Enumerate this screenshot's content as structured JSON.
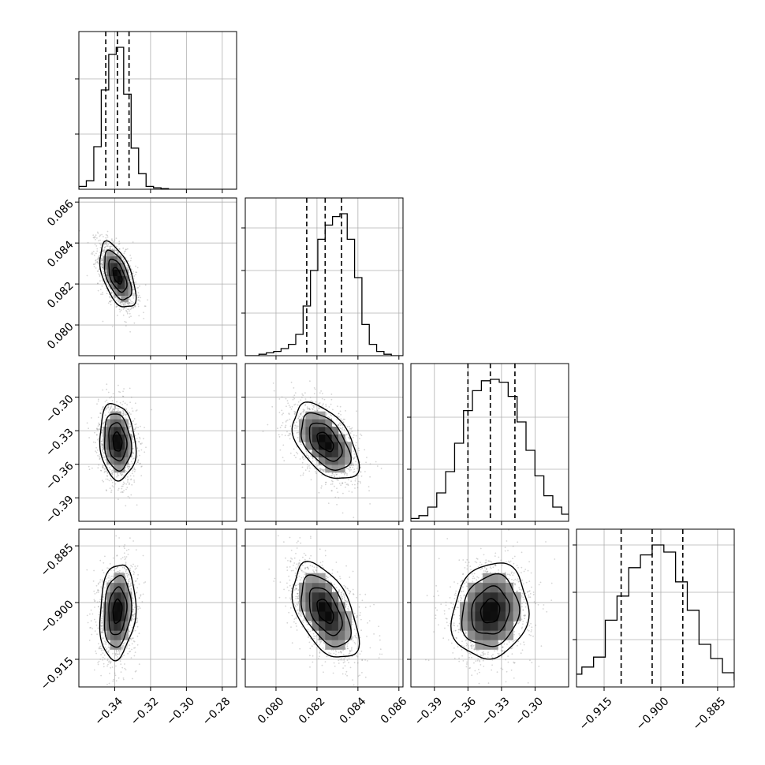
{
  "chart_data": {
    "type": "corner",
    "grid": true,
    "parameters": [
      {
        "range": [
          -0.36,
          -0.272
        ],
        "ticks": [
          -0.34,
          -0.32,
          -0.3,
          -0.28
        ],
        "tick_labels": [
          "−0.34",
          "−0.32",
          "−0.30",
          "−0.28"
        ],
        "quantiles": [
          -0.345,
          -0.3385,
          -0.332
        ],
        "hist_bins": [
          0.02,
          0.06,
          0.3,
          0.7,
          0.95,
          1.0,
          0.67,
          0.29,
          0.11,
          0.02,
          0.01,
          0.005
        ]
      },
      {
        "range": [
          0.0785,
          0.0862
        ],
        "ticks": [
          0.08,
          0.082,
          0.084,
          0.086
        ],
        "tick_labels": [
          "0.080",
          "0.082",
          "0.084",
          "0.086"
        ],
        "quantiles": [
          0.0815,
          0.0824,
          0.0832
        ],
        "hist_bins": [
          0.01,
          0.02,
          0.03,
          0.05,
          0.08,
          0.15,
          0.35,
          0.6,
          0.82,
          0.92,
          0.98,
          1.0,
          0.82,
          0.55,
          0.22,
          0.08,
          0.03,
          0.01
        ]
      },
      {
        "range": [
          -0.411,
          -0.27
        ],
        "ticks": [
          -0.39,
          -0.36,
          -0.33,
          -0.3
        ],
        "tick_labels": [
          "−0.39",
          "−0.36",
          "−0.33",
          "−0.30"
        ],
        "quantiles": [
          -0.36,
          -0.34,
          -0.318
        ],
        "hist_bins": [
          0.01,
          0.02,
          0.04,
          0.1,
          0.2,
          0.35,
          0.55,
          0.78,
          0.92,
          0.99,
          1.0,
          0.98,
          0.88,
          0.7,
          0.5,
          0.32,
          0.18,
          0.1,
          0.05,
          0.02
        ]
      },
      {
        "range": [
          -0.9223,
          -0.8806
        ],
        "ticks": [
          -0.915,
          -0.9,
          -0.885
        ],
        "tick_labels": [
          "−0.915",
          "−0.900",
          "−0.885"
        ],
        "quantiles": [
          -0.9105,
          -0.9023,
          -0.8942
        ],
        "hist_bins": [
          0.01,
          0.02,
          0.05,
          0.09,
          0.14,
          0.21,
          0.47,
          0.64,
          0.84,
          0.93,
          1.0,
          0.95,
          0.74,
          0.54,
          0.3,
          0.2,
          0.1,
          0.05,
          0.02,
          0.01
        ]
      }
    ],
    "diagonal_yticks": [
      [
        0.35,
        0.7
      ],
      [
        0.27,
        0.54,
        0.81
      ],
      [
        0.33,
        0.66
      ],
      [
        0.3,
        0.6,
        0.9
      ]
    ],
    "pairs": [
      {
        "x": 0,
        "y": 1,
        "mean": [
          -0.3385,
          0.0824
        ],
        "sd": [
          0.005,
          0.0008
        ],
        "rho": -0.55
      },
      {
        "x": 0,
        "y": 2,
        "mean": [
          -0.3385,
          -0.34
        ],
        "sd": [
          0.005,
          0.017
        ],
        "rho": -0.15
      },
      {
        "x": 1,
        "y": 2,
        "mean": [
          0.0824,
          -0.34
        ],
        "sd": [
          0.0008,
          0.017
        ],
        "rho": -0.5
      },
      {
        "x": 0,
        "y": 3,
        "mean": [
          -0.3385,
          -0.9023
        ],
        "sd": [
          0.005,
          0.0063
        ],
        "rho": 0.15
      },
      {
        "x": 1,
        "y": 3,
        "mean": [
          0.0824,
          -0.9023
        ],
        "sd": [
          0.0008,
          0.0063
        ],
        "rho": -0.5
      },
      {
        "x": 2,
        "y": 3,
        "mean": [
          -0.34,
          -0.9023
        ],
        "sd": [
          0.017,
          0.0063
        ],
        "rho": 0.12
      }
    ],
    "contour_levels_sigma": [
      0.5,
      1.0,
      1.5,
      2.0
    ]
  }
}
